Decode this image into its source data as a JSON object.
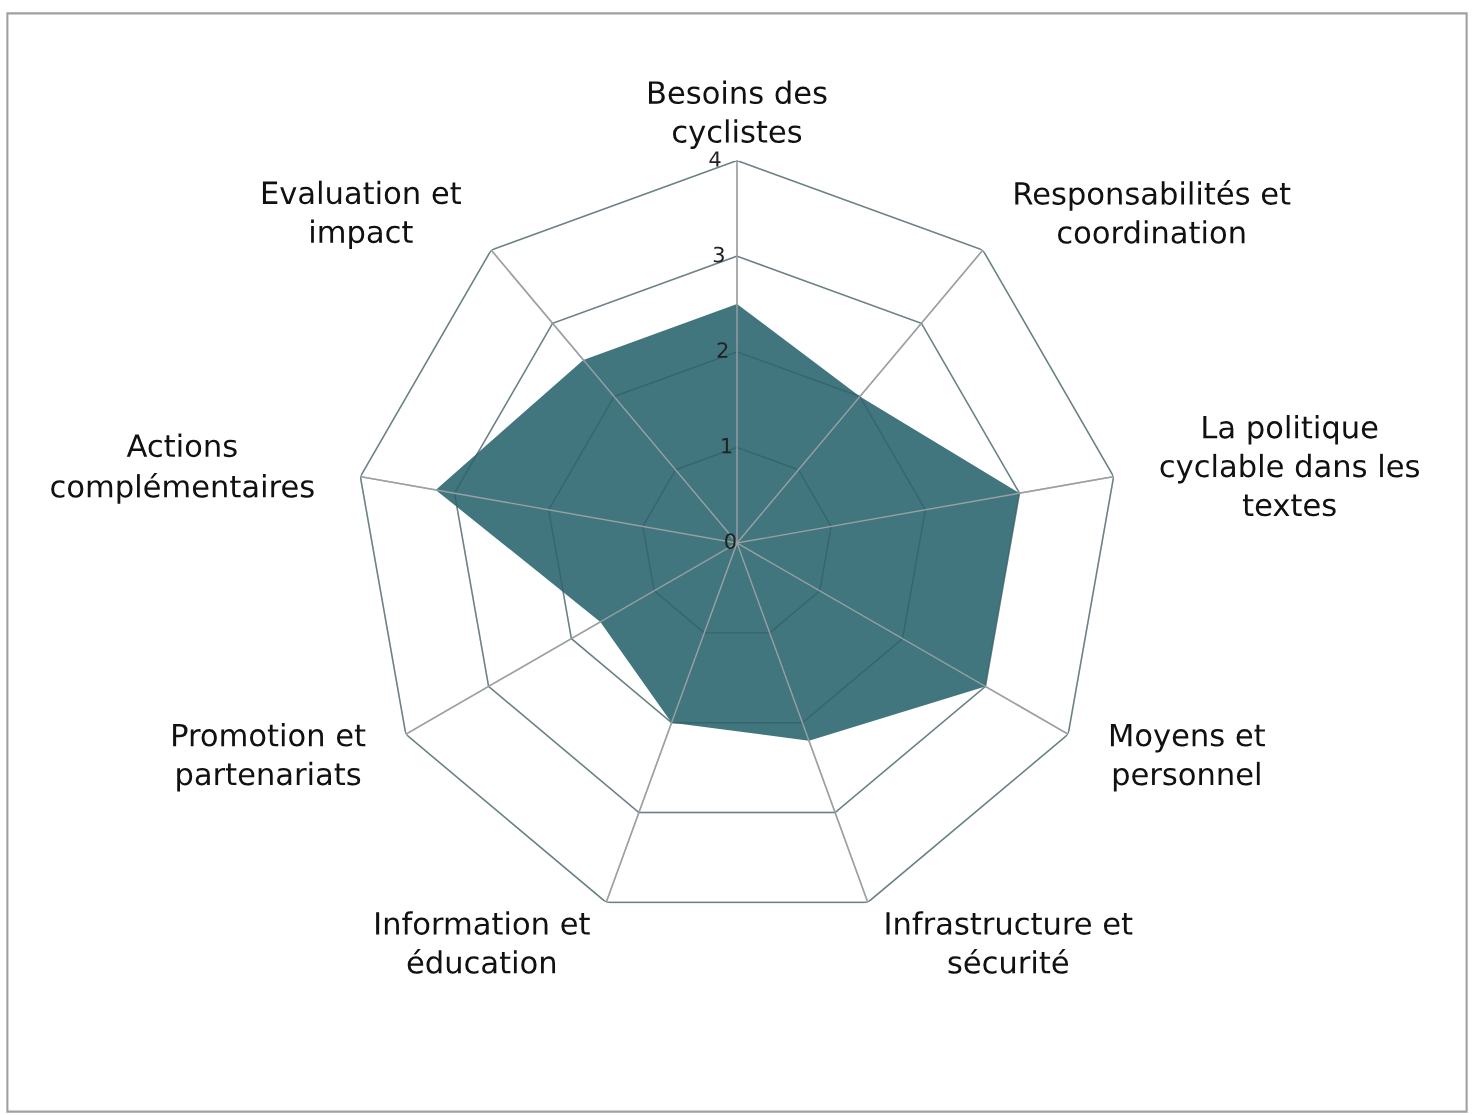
{
  "chart_data": {
    "type": "radar",
    "categories": [
      "Besoins des\ncyclistes",
      "Responsabilités et\ncoordination",
      "La politique\ncyclable dans les\ntextes",
      "Moyens et\npersonnel",
      "Infrastructure et\nsécurité",
      "Information et\néducation",
      "Promotion et\npartenariats",
      "Actions\ncomplémentaires",
      "Evaluation et\nimpact"
    ],
    "series": [
      {
        "color": "#41767f",
        "values": [
          2.5,
          2.0,
          3.0,
          3.0,
          2.2,
          2.0,
          1.65,
          3.2,
          2.5
        ]
      }
    ],
    "ylim": [
      0,
      4
    ],
    "yticks": [
      0,
      1,
      2,
      3,
      4
    ],
    "grid": true,
    "legend": false
  }
}
